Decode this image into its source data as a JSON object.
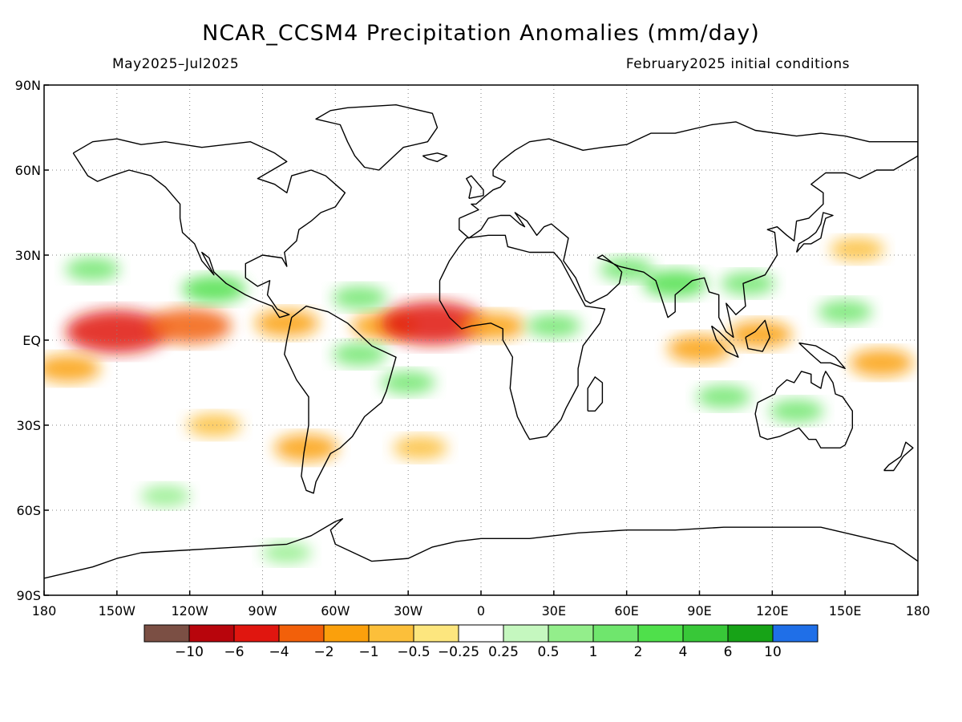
{
  "title": "NCAR_CCSM4 Precipitation Anomalies (mm/day)",
  "period": "May2025–Jul2025",
  "initial_conditions": "February2025 initial conditions",
  "chart_data": {
    "type": "heatmap",
    "title": "NCAR_CCSM4 Precipitation Anomalies (mm/day)",
    "subtitle_left": "May2025–Jul2025",
    "subtitle_right": "February2025 initial conditions",
    "x_range": [
      -180,
      180
    ],
    "y_range": [
      -90,
      90
    ],
    "grid": true,
    "x_ticks": [
      {
        "value": -180,
        "label": "180"
      },
      {
        "value": -150,
        "label": "150W"
      },
      {
        "value": -120,
        "label": "120W"
      },
      {
        "value": -90,
        "label": "90W"
      },
      {
        "value": -60,
        "label": "60W"
      },
      {
        "value": -30,
        "label": "30W"
      },
      {
        "value": 0,
        "label": "0"
      },
      {
        "value": 30,
        "label": "30E"
      },
      {
        "value": 60,
        "label": "60E"
      },
      {
        "value": 90,
        "label": "90E"
      },
      {
        "value": 120,
        "label": "120E"
      },
      {
        "value": 150,
        "label": "150E"
      },
      {
        "value": 180,
        "label": "180"
      }
    ],
    "y_ticks": [
      {
        "value": 90,
        "label": "90N"
      },
      {
        "value": 60,
        "label": "60N"
      },
      {
        "value": 30,
        "label": "30N"
      },
      {
        "value": 0,
        "label": "EQ"
      },
      {
        "value": -30,
        "label": "30S"
      },
      {
        "value": -60,
        "label": "60S"
      },
      {
        "value": -90,
        "label": "90S"
      }
    ],
    "colorbar": {
      "colors": [
        "#7b4f44",
        "#b8050c",
        "#e0160f",
        "#f2600a",
        "#fba00c",
        "#fcbf3a",
        "#fde67e",
        "#ffffff",
        "#c5f7bf",
        "#93ee8b",
        "#6fe66d",
        "#4fe04b",
        "#38c838",
        "#17a317",
        "#1f6fe8"
      ],
      "labels": [
        "−10",
        "−6",
        "−4",
        "−2",
        "−1",
        "−0.5",
        "−0.25",
        "0.25",
        "0.5",
        "1",
        "2",
        "4",
        "6",
        "10"
      ]
    },
    "anomalies": [
      {
        "lon": -150,
        "lat": 3,
        "value": -6
      },
      {
        "lon": -120,
        "lat": 5,
        "value": -4
      },
      {
        "lon": -80,
        "lat": 6,
        "value": -2
      },
      {
        "lon": -40,
        "lat": 5,
        "value": -2
      },
      {
        "lon": -20,
        "lat": 6,
        "value": -6
      },
      {
        "lon": 5,
        "lat": 5,
        "value": -2
      },
      {
        "lon": -170,
        "lat": -10,
        "value": -2
      },
      {
        "lon": -110,
        "lat": -30,
        "value": -1
      },
      {
        "lon": -72,
        "lat": -38,
        "value": -2
      },
      {
        "lon": -25,
        "lat": -38,
        "value": -1
      },
      {
        "lon": 90,
        "lat": -3,
        "value": -2
      },
      {
        "lon": 115,
        "lat": 2,
        "value": -2
      },
      {
        "lon": 165,
        "lat": -8,
        "value": -2
      },
      {
        "lon": 155,
        "lat": 32,
        "value": -1
      },
      {
        "lon": -110,
        "lat": 18,
        "value": 2
      },
      {
        "lon": -160,
        "lat": 25,
        "value": 1
      },
      {
        "lon": -50,
        "lat": 15,
        "value": 1
      },
      {
        "lon": -50,
        "lat": -5,
        "value": 1
      },
      {
        "lon": -30,
        "lat": -15,
        "value": 1
      },
      {
        "lon": 30,
        "lat": 5,
        "value": 1
      },
      {
        "lon": 60,
        "lat": 25,
        "value": 1
      },
      {
        "lon": 80,
        "lat": 20,
        "value": 2
      },
      {
        "lon": 110,
        "lat": 20,
        "value": 1
      },
      {
        "lon": 150,
        "lat": 10,
        "value": 1
      },
      {
        "lon": 100,
        "lat": -20,
        "value": 1
      },
      {
        "lon": 130,
        "lat": -25,
        "value": 1
      },
      {
        "lon": -130,
        "lat": -55,
        "value": 0.5
      },
      {
        "lon": -80,
        "lat": -75,
        "value": 0.5
      }
    ]
  }
}
